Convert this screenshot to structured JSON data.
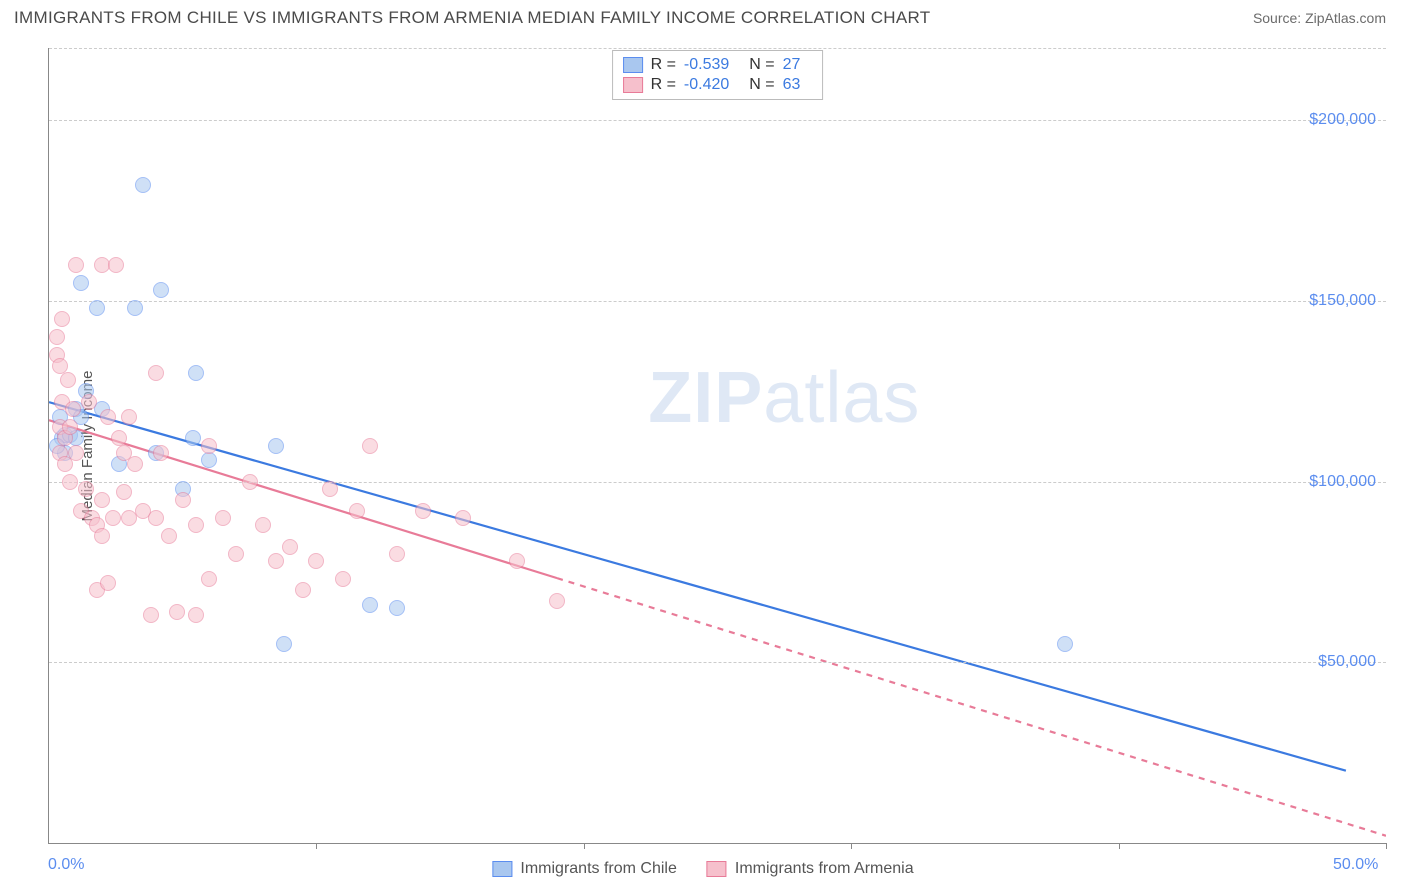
{
  "header": {
    "title": "IMMIGRANTS FROM CHILE VS IMMIGRANTS FROM ARMENIA MEDIAN FAMILY INCOME CORRELATION CHART",
    "source": "Source: ZipAtlas.com"
  },
  "watermark": {
    "zip": "ZIP",
    "atlas": "atlas"
  },
  "ylabel": "Median Family Income",
  "chart": {
    "type": "scatter",
    "xlim": [
      0,
      50
    ],
    "ylim": [
      0,
      220000
    ],
    "background_color": "#ffffff",
    "grid_color": "#cccccc",
    "axis_color": "#888888",
    "yticks": [
      {
        "v": 50000,
        "label": "$50,000"
      },
      {
        "v": 100000,
        "label": "$100,000"
      },
      {
        "v": 150000,
        "label": "$150,000"
      },
      {
        "v": 200000,
        "label": "$200,000"
      }
    ],
    "ygrid_extra": [
      220000
    ],
    "xgrid": [
      10,
      20,
      30,
      40,
      50
    ],
    "xlabels": [
      {
        "v": 0,
        "label": "0.0%",
        "align": "left"
      },
      {
        "v": 50,
        "label": "50.0%",
        "align": "right"
      }
    ],
    "point_radius": 8,
    "point_stroke_width": 1.3,
    "series": [
      {
        "name": "Immigrants from Chile",
        "key": "chile",
        "fill": "#a9c7ef",
        "stroke": "#5b8def",
        "fill_opacity": 0.55,
        "r_label": "R =",
        "r_value": "-0.539",
        "n_label": "N =",
        "n_value": "27",
        "regression": {
          "x1": 0,
          "y1": 122000,
          "x2": 48.5,
          "y2": 20000,
          "solid_end_x": 48.5,
          "stroke": "#3b7ae0",
          "width": 2.2
        },
        "points": [
          [
            0.4,
            118000
          ],
          [
            0.5,
            112000
          ],
          [
            0.6,
            108000
          ],
          [
            0.6,
            113000
          ],
          [
            0.8,
            113000
          ],
          [
            1.0,
            112000
          ],
          [
            1.0,
            120000
          ],
          [
            1.2,
            118000
          ],
          [
            1.2,
            155000
          ],
          [
            1.4,
            125000
          ],
          [
            1.8,
            148000
          ],
          [
            2.0,
            120000
          ],
          [
            2.6,
            105000
          ],
          [
            3.2,
            148000
          ],
          [
            3.5,
            182000
          ],
          [
            4.0,
            108000
          ],
          [
            4.2,
            153000
          ],
          [
            5.0,
            98000
          ],
          [
            5.4,
            112000
          ],
          [
            5.5,
            130000
          ],
          [
            6.0,
            106000
          ],
          [
            8.5,
            110000
          ],
          [
            8.8,
            55000
          ],
          [
            12.0,
            66000
          ],
          [
            13.0,
            65000
          ],
          [
            38.0,
            55000
          ],
          [
            0.3,
            110000
          ]
        ]
      },
      {
        "name": "Immigrants from Armenia",
        "key": "armenia",
        "fill": "#f6c0cc",
        "stroke": "#e87b98",
        "fill_opacity": 0.55,
        "r_label": "R =",
        "r_value": "-0.420",
        "n_label": "N =",
        "n_value": "63",
        "regression": {
          "x1": 0,
          "y1": 117000,
          "x2": 50,
          "y2": 2000,
          "solid_end_x": 19,
          "stroke": "#e87b98",
          "width": 2.2,
          "dash": "6,6"
        },
        "points": [
          [
            0.3,
            140000
          ],
          [
            0.3,
            135000
          ],
          [
            0.4,
            132000
          ],
          [
            0.4,
            115000
          ],
          [
            0.4,
            108000
          ],
          [
            0.5,
            145000
          ],
          [
            0.5,
            122000
          ],
          [
            0.6,
            112000
          ],
          [
            0.6,
            105000
          ],
          [
            0.7,
            128000
          ],
          [
            0.8,
            115000
          ],
          [
            0.8,
            100000
          ],
          [
            0.9,
            120000
          ],
          [
            1.0,
            160000
          ],
          [
            1.0,
            108000
          ],
          [
            1.2,
            92000
          ],
          [
            1.4,
            98000
          ],
          [
            1.5,
            122000
          ],
          [
            1.6,
            90000
          ],
          [
            1.8,
            88000
          ],
          [
            1.8,
            70000
          ],
          [
            2.0,
            160000
          ],
          [
            2.0,
            85000
          ],
          [
            2.0,
            95000
          ],
          [
            2.2,
            118000
          ],
          [
            2.2,
            72000
          ],
          [
            2.4,
            90000
          ],
          [
            2.5,
            160000
          ],
          [
            2.6,
            112000
          ],
          [
            2.8,
            97000
          ],
          [
            2.8,
            108000
          ],
          [
            3.0,
            118000
          ],
          [
            3.0,
            90000
          ],
          [
            3.2,
            105000
          ],
          [
            3.5,
            92000
          ],
          [
            3.8,
            63000
          ],
          [
            4.0,
            130000
          ],
          [
            4.0,
            90000
          ],
          [
            4.2,
            108000
          ],
          [
            4.5,
            85000
          ],
          [
            4.8,
            64000
          ],
          [
            5.0,
            95000
          ],
          [
            5.5,
            88000
          ],
          [
            5.5,
            63000
          ],
          [
            6.0,
            110000
          ],
          [
            6.0,
            73000
          ],
          [
            6.5,
            90000
          ],
          [
            7.0,
            80000
          ],
          [
            7.5,
            100000
          ],
          [
            8.0,
            88000
          ],
          [
            8.5,
            78000
          ],
          [
            9.0,
            82000
          ],
          [
            9.5,
            70000
          ],
          [
            10.0,
            78000
          ],
          [
            10.5,
            98000
          ],
          [
            11.0,
            73000
          ],
          [
            11.5,
            92000
          ],
          [
            12.0,
            110000
          ],
          [
            13.0,
            80000
          ],
          [
            14.0,
            92000
          ],
          [
            15.5,
            90000
          ],
          [
            17.5,
            78000
          ],
          [
            19.0,
            67000
          ]
        ]
      }
    ]
  },
  "legend_bottom": [
    {
      "label": "Immigrants from Chile",
      "fill": "#a9c7ef",
      "stroke": "#5b8def"
    },
    {
      "label": "Immigrants from Armenia",
      "fill": "#f6c0cc",
      "stroke": "#e87b98"
    }
  ],
  "text_colors": {
    "title": "#4a4a4a",
    "source": "#6b6b6b",
    "tick": "#5b8def",
    "stat_value": "#3b7ae0"
  },
  "fontsize": {
    "title": 17,
    "source": 14,
    "tick": 16,
    "legend": 16,
    "ylabel": 15,
    "watermark": 72
  }
}
